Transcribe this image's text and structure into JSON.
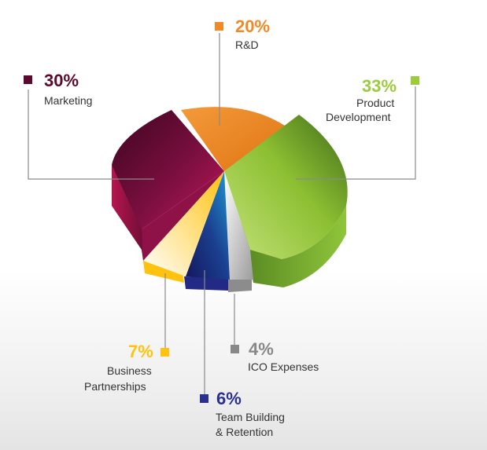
{
  "chart_data": {
    "type": "pie",
    "title": "",
    "slices": [
      {
        "name": "Marketing",
        "value": 30,
        "label": "30%",
        "color": "#5a0a2e"
      },
      {
        "name": "R&D",
        "value": 20,
        "label": "20%",
        "color": "#ef8a26"
      },
      {
        "name": "Product Development",
        "value": 33,
        "label": "33%",
        "color": "#9ccb3b"
      },
      {
        "name": "ICO Expenses",
        "value": 4,
        "label": "4%",
        "color": "#9a9a9a"
      },
      {
        "name": "Team Building & Retention",
        "value": 6,
        "label": "6%",
        "color": "#2b2f8f"
      },
      {
        "name": "Business Partnerships",
        "value": 7,
        "label": "7%",
        "color": "#ffc20e"
      }
    ],
    "legend": "callouts around pie"
  },
  "callouts": {
    "marketing": {
      "pct": "30%",
      "lines": [
        "Marketing"
      ]
    },
    "rnd": {
      "pct": "20%",
      "lines": [
        "R&D"
      ]
    },
    "product": {
      "pct": "33%",
      "lines": [
        "Product",
        "Development"
      ]
    },
    "ico": {
      "pct": "4%",
      "lines": [
        "ICO Expenses"
      ]
    },
    "team": {
      "pct": "6%",
      "lines": [
        "Team Building",
        "& Retention"
      ]
    },
    "business": {
      "pct": "7%",
      "lines": [
        "Business",
        "Partnerships"
      ]
    }
  },
  "colors": {
    "marketing": "#5a0a2e",
    "rnd": "#ef8a26",
    "product": "#9ccb3b",
    "ico": "#888888",
    "team": "#2b2f8f",
    "business": "#ffc20e",
    "leader": "#8a8a8a"
  }
}
